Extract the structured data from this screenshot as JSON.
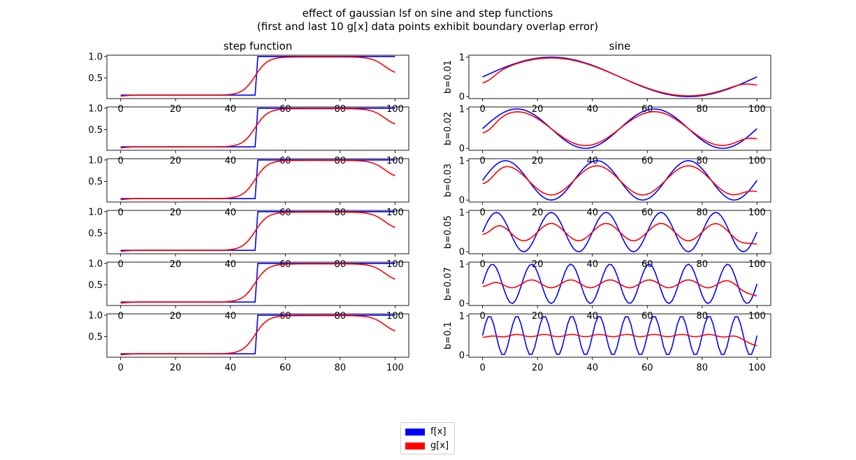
{
  "figure": {
    "title_line1": "effect of gaussian lsf on sine and step functions",
    "title_line2": "(first and last 10 g[x] data points exhibit boundary overlap error)"
  },
  "colors": {
    "f": "#0000ff",
    "g": "#ff0000"
  },
  "legend": {
    "f_label": "f[x]",
    "g_label": "g[x]"
  },
  "chart_data": [
    {
      "type": "line",
      "panel": "step",
      "title": "step function",
      "ylabel": "",
      "xlim": [
        -5,
        105
      ],
      "ylim": [
        0.02,
        1.03
      ],
      "xticks": [
        0,
        20,
        40,
        60,
        80,
        100
      ],
      "yticks": [
        0.5,
        1.0
      ],
      "ytick_labels": [
        "0.5",
        "1.0"
      ],
      "step_at": 50,
      "f_low": 0.1,
      "f_high": 1.0,
      "g_plateau_low": 0.1,
      "g_plateau_high": 0.99,
      "g_start": 0.07,
      "g_end": 0.55,
      "series": [
        {
          "name": "f[x]"
        },
        {
          "name": "g[x]"
        }
      ]
    },
    {
      "type": "line",
      "panel": "sine",
      "title": "sine",
      "ylabel": "b=0.01",
      "b": 0.01,
      "xlim": [
        -5,
        105
      ],
      "ylim": [
        -0.05,
        1.05
      ],
      "xticks": [
        0,
        20,
        40,
        60,
        80,
        100
      ],
      "yticks": [
        0,
        1
      ],
      "ytick_labels": [
        "0",
        "1"
      ],
      "f_offset": 0.5,
      "f_amplitude": 0.5,
      "g_offset": 0.5,
      "g_amplitude": 0.48,
      "g_start": 0.32,
      "g_end": 0.24,
      "series": [
        {
          "name": "f[x]"
        },
        {
          "name": "g[x]"
        }
      ]
    },
    {
      "type": "line",
      "panel": "sine",
      "title": "",
      "ylabel": "b=0.02",
      "b": 0.02,
      "xlim": [
        -5,
        105
      ],
      "ylim": [
        -0.05,
        1.05
      ],
      "xticks": [
        0,
        20,
        40,
        60,
        80,
        100
      ],
      "yticks": [
        0,
        1
      ],
      "ytick_labels": [
        "0",
        "1"
      ],
      "f_offset": 0.5,
      "f_amplitude": 0.5,
      "g_offset": 0.5,
      "g_amplitude": 0.43,
      "g_start": 0.37,
      "g_end": 0.18,
      "series": [
        {
          "name": "f[x]"
        },
        {
          "name": "g[x]"
        }
      ]
    },
    {
      "type": "line",
      "panel": "sine",
      "title": "",
      "ylabel": "b=0.03",
      "b": 0.03,
      "xlim": [
        -5,
        105
      ],
      "ylim": [
        -0.05,
        1.05
      ],
      "xticks": [
        0,
        20,
        40,
        60,
        80,
        100
      ],
      "yticks": [
        0,
        1
      ],
      "ytick_labels": [
        "0",
        "1"
      ],
      "f_offset": 0.5,
      "f_amplitude": 0.5,
      "g_offset": 0.5,
      "g_amplitude": 0.37,
      "g_start": 0.4,
      "g_end": 0.15,
      "series": [
        {
          "name": "f[x]"
        },
        {
          "name": "g[x]"
        }
      ]
    },
    {
      "type": "line",
      "panel": "sine",
      "title": "",
      "ylabel": "b=0.05",
      "b": 0.05,
      "xlim": [
        -5,
        105
      ],
      "ylim": [
        -0.05,
        1.05
      ],
      "xticks": [
        0,
        20,
        40,
        60,
        80,
        100
      ],
      "yticks": [
        0,
        1
      ],
      "ytick_labels": [
        "0",
        "1"
      ],
      "f_offset": 0.5,
      "f_amplitude": 0.5,
      "g_offset": 0.5,
      "g_amplitude": 0.22,
      "g_start": 0.43,
      "g_end": 0.12,
      "series": [
        {
          "name": "f[x]"
        },
        {
          "name": "g[x]"
        }
      ]
    },
    {
      "type": "line",
      "panel": "sine",
      "title": "",
      "ylabel": "b=0.07",
      "b": 0.07,
      "xlim": [
        -5,
        105
      ],
      "ylim": [
        -0.05,
        1.05
      ],
      "xticks": [
        0,
        20,
        40,
        60,
        80,
        100
      ],
      "yticks": [
        0,
        1
      ],
      "ytick_labels": [
        "0",
        "1"
      ],
      "f_offset": 0.5,
      "f_amplitude": 0.5,
      "g_offset": 0.5,
      "g_amplitude": 0.1,
      "g_start": 0.42,
      "g_end": 0.12,
      "series": [
        {
          "name": "f[x]"
        },
        {
          "name": "g[x]"
        }
      ]
    },
    {
      "type": "line",
      "panel": "sine",
      "title": "",
      "ylabel": "b=0.1",
      "b": 0.1,
      "xlim": [
        -5,
        105
      ],
      "ylim": [
        -0.05,
        1.05
      ],
      "xticks": [
        0,
        20,
        40,
        60,
        80,
        100
      ],
      "yticks": [
        0,
        1
      ],
      "ytick_labels": [
        "0",
        "1"
      ],
      "f_offset": 0.5,
      "f_amplitude": 0.5,
      "g_offset": 0.5,
      "g_amplitude": 0.03,
      "g_start": 0.45,
      "g_end": 0.18,
      "series": [
        {
          "name": "f[x]"
        },
        {
          "name": "g[x]"
        }
      ]
    }
  ]
}
